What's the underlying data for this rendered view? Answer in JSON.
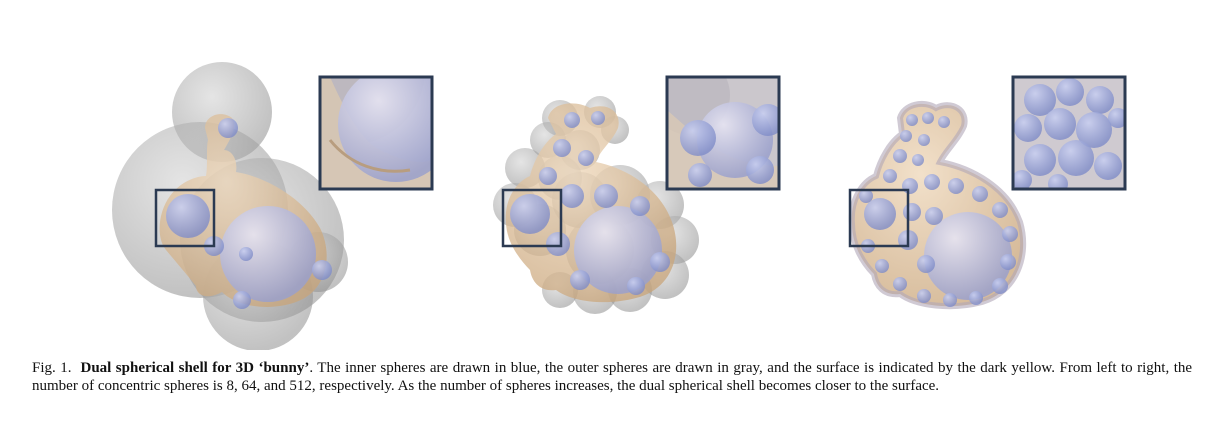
{
  "caption": {
    "fig_label": "Fig. 1.",
    "title": "Dual spherical shell for 3D ‘bunny’",
    "body": ". The inner spheres are drawn in blue, the outer spheres are drawn in gray, and the surface is indicated by the dark yellow. From left to right, the number of concentric spheres is 8, 64, and 512, respectively. As the number of spheres increases, the dual spherical shell becomes closer to the surface."
  },
  "colors": {
    "inner_sphere": "#9aa6d6",
    "outer_sphere": "#9c9c9c",
    "surface": "#d9b98e",
    "inset_frame": "#2b3a52"
  },
  "panels": [
    {
      "sphere_count": 8
    },
    {
      "sphere_count": 64
    },
    {
      "sphere_count": 512
    }
  ]
}
